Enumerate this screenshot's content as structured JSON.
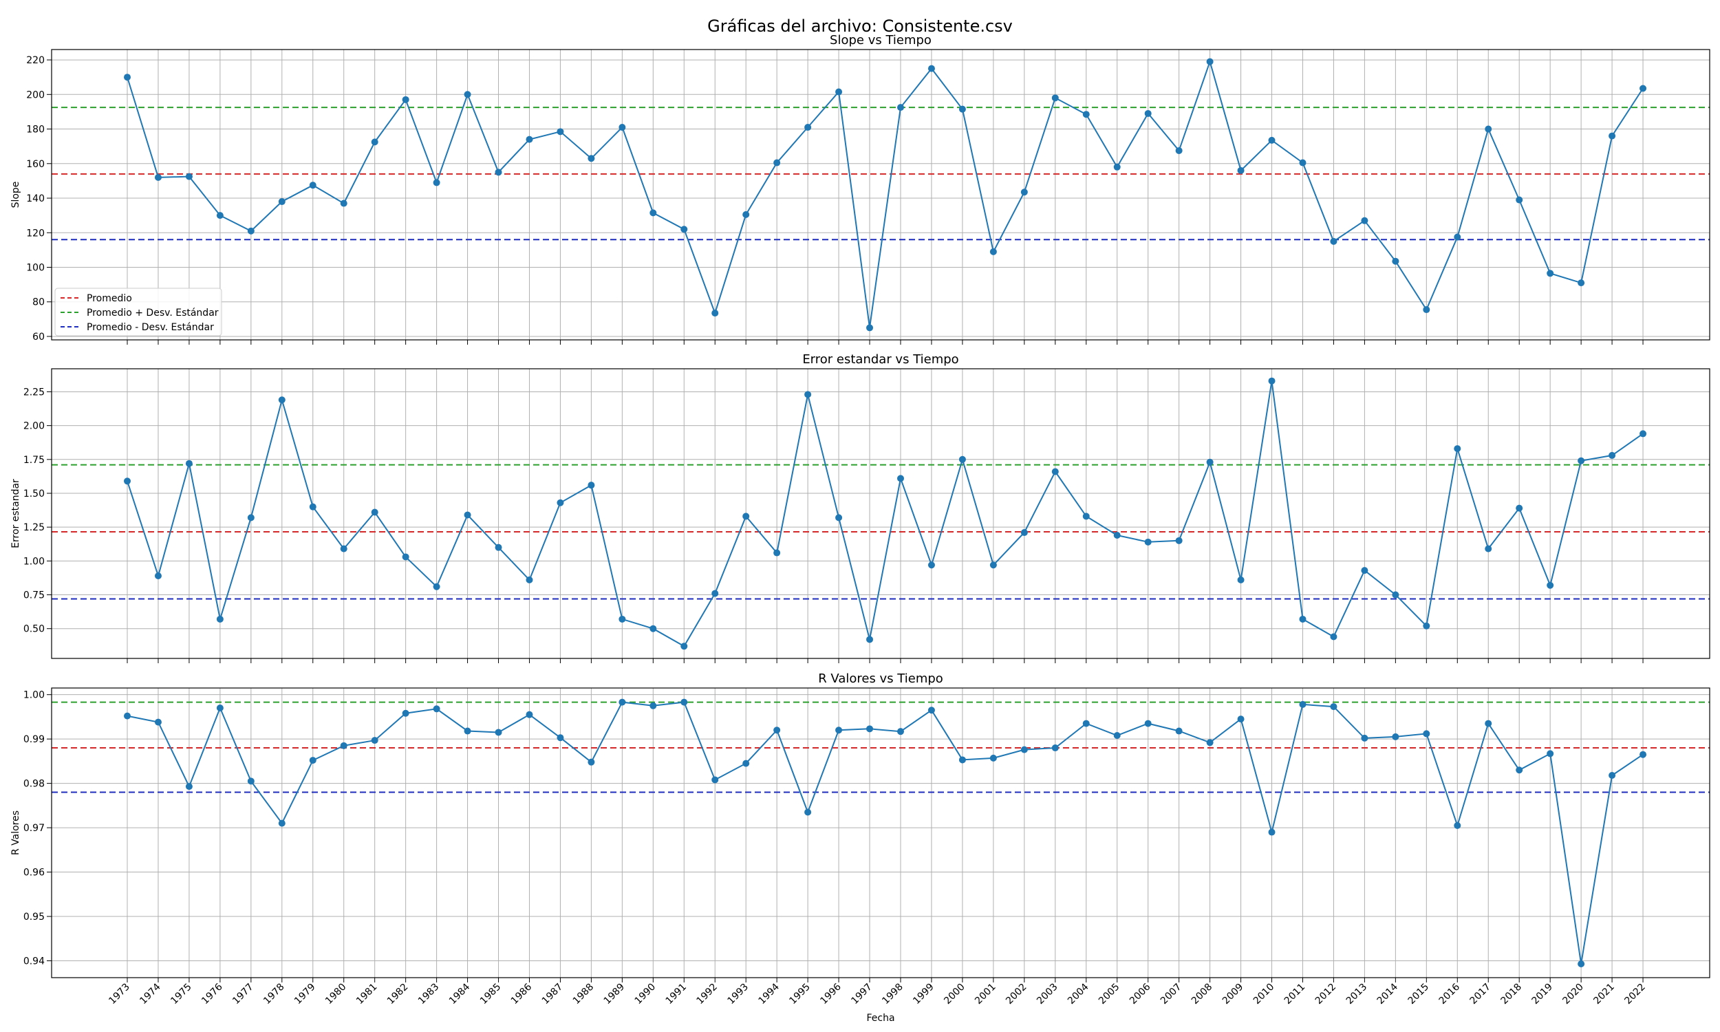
{
  "figure": {
    "suptitle": "Gráficas del archivo: Consistente.csv",
    "xlabel": "Fecha"
  },
  "colors": {
    "series": "#1f77b4",
    "mean": "#d62728",
    "plus_std": "#2ca02c",
    "minus_std": "#1f2dbf",
    "grid": "#b0b0b0"
  },
  "chart_data": [
    {
      "type": "line",
      "title": "Slope vs Tiempo",
      "ylabel": "Slope",
      "ylim": [
        58,
        226
      ],
      "yticks": [
        60,
        80,
        100,
        120,
        140,
        160,
        180,
        200,
        220
      ],
      "ytick_labels": [
        "60",
        "80",
        "100",
        "120",
        "140",
        "160",
        "180",
        "200",
        "220"
      ],
      "grid": true,
      "legend_position": "lower-left",
      "x": [
        "1973",
        "1974",
        "1975",
        "1976",
        "1977",
        "1978",
        "1979",
        "1980",
        "1981",
        "1982",
        "1983",
        "1984",
        "1985",
        "1986",
        "1987",
        "1988",
        "1989",
        "1990",
        "1991",
        "1992",
        "1993",
        "1994",
        "1995",
        "1996",
        "1997",
        "1998",
        "1999",
        "2000",
        "2001",
        "2002",
        "2003",
        "2004",
        "2005",
        "2006",
        "2007",
        "2008",
        "2009",
        "2010",
        "2011",
        "2012",
        "2013",
        "2014",
        "2015",
        "2016",
        "2017",
        "2018",
        "2019",
        "2020",
        "2021",
        "2022"
      ],
      "values": [
        210,
        152,
        152.5,
        130,
        121,
        138,
        147.5,
        137,
        172.5,
        197,
        149,
        200,
        155,
        174,
        178.5,
        163,
        181,
        131.5,
        122,
        73.5,
        130.5,
        160.5,
        181,
        201.5,
        65,
        192.5,
        215,
        191.5,
        109,
        143.5,
        198,
        188.5,
        158,
        189,
        167.5,
        219,
        156,
        173.5,
        160.5,
        115,
        127,
        103.5,
        75.5,
        117.5,
        180,
        139,
        96.5,
        91,
        176,
        203.5
      ],
      "lines": [
        {
          "name": "Promedio",
          "value": 154
        },
        {
          "name": "Promedio + Desv. Estándar",
          "value": 192.5
        },
        {
          "name": "Promedio - Desv. Estándar",
          "value": 116
        }
      ]
    },
    {
      "type": "line",
      "title": "Error estandar vs Tiempo",
      "ylabel": "Error estandar",
      "ylim": [
        0.28,
        2.42
      ],
      "yticks": [
        0.5,
        0.75,
        1.0,
        1.25,
        1.5,
        1.75,
        2.0,
        2.25
      ],
      "ytick_labels": [
        "0.50",
        "0.75",
        "1.00",
        "1.25",
        "1.50",
        "1.75",
        "2.00",
        "2.25"
      ],
      "grid": true,
      "x": [
        "1973",
        "1974",
        "1975",
        "1976",
        "1977",
        "1978",
        "1979",
        "1980",
        "1981",
        "1982",
        "1983",
        "1984",
        "1985",
        "1986",
        "1987",
        "1988",
        "1989",
        "1990",
        "1991",
        "1992",
        "1993",
        "1994",
        "1995",
        "1996",
        "1997",
        "1998",
        "1999",
        "2000",
        "2001",
        "2002",
        "2003",
        "2004",
        "2005",
        "2006",
        "2007",
        "2008",
        "2009",
        "2010",
        "2011",
        "2012",
        "2013",
        "2014",
        "2015",
        "2016",
        "2017",
        "2018",
        "2019",
        "2020",
        "2021",
        "2022"
      ],
      "values": [
        1.59,
        0.89,
        1.72,
        0.57,
        1.32,
        2.19,
        1.4,
        1.09,
        1.36,
        1.03,
        0.81,
        1.34,
        1.1,
        0.86,
        1.43,
        1.56,
        0.57,
        0.5,
        0.37,
        0.76,
        1.33,
        1.06,
        2.23,
        1.32,
        0.42,
        1.61,
        0.97,
        1.75,
        0.97,
        1.21,
        1.66,
        1.33,
        1.19,
        1.14,
        1.15,
        1.73,
        0.86,
        2.33,
        0.57,
        0.44,
        0.93,
        0.75,
        0.52,
        1.83,
        1.09,
        1.39,
        0.82,
        1.74,
        1.78,
        1.94
      ],
      "lines": [
        {
          "name": "Promedio",
          "value": 1.215
        },
        {
          "name": "Promedio + Desv. Estándar",
          "value": 1.71
        },
        {
          "name": "Promedio - Desv. Estándar",
          "value": 0.72
        }
      ]
    },
    {
      "type": "line",
      "title": "R Valores vs Tiempo",
      "ylabel": "R Valores",
      "ylim": [
        0.9362,
        1.0015
      ],
      "yticks": [
        0.94,
        0.95,
        0.96,
        0.97,
        0.98,
        0.99,
        1.0
      ],
      "ytick_labels": [
        "0.94",
        "0.95",
        "0.96",
        "0.97",
        "0.98",
        "0.99",
        "1.00"
      ],
      "grid": true,
      "x": [
        "1973",
        "1974",
        "1975",
        "1976",
        "1977",
        "1978",
        "1979",
        "1980",
        "1981",
        "1982",
        "1983",
        "1984",
        "1985",
        "1986",
        "1987",
        "1988",
        "1989",
        "1990",
        "1991",
        "1992",
        "1993",
        "1994",
        "1995",
        "1996",
        "1997",
        "1998",
        "1999",
        "2000",
        "2001",
        "2002",
        "2003",
        "2004",
        "2005",
        "2006",
        "2007",
        "2008",
        "2009",
        "2010",
        "2011",
        "2012",
        "2013",
        "2014",
        "2015",
        "2016",
        "2017",
        "2018",
        "2019",
        "2020",
        "2021",
        "2022"
      ],
      "values": [
        0.9952,
        0.9938,
        0.9793,
        0.997,
        0.9805,
        0.971,
        0.9852,
        0.9885,
        0.9897,
        0.9958,
        0.9968,
        0.9918,
        0.9915,
        0.9955,
        0.9903,
        0.9848,
        0.9983,
        0.9975,
        0.9983,
        0.9808,
        0.9845,
        0.992,
        0.9735,
        0.992,
        0.9923,
        0.9917,
        0.9965,
        0.9853,
        0.9857,
        0.9876,
        0.988,
        0.9935,
        0.9908,
        0.9935,
        0.9918,
        0.9892,
        0.9945,
        0.969,
        0.9978,
        0.9973,
        0.9902,
        0.9905,
        0.9912,
        0.9705,
        0.9935,
        0.983,
        0.9867,
        0.9393,
        0.9818,
        0.9865
      ],
      "lines": [
        {
          "name": "Promedio",
          "value": 0.988
        },
        {
          "name": "Promedio + Desv. Estándar",
          "value": 0.9983
        },
        {
          "name": "Promedio - Desv. Estándar",
          "value": 0.978
        }
      ]
    }
  ]
}
